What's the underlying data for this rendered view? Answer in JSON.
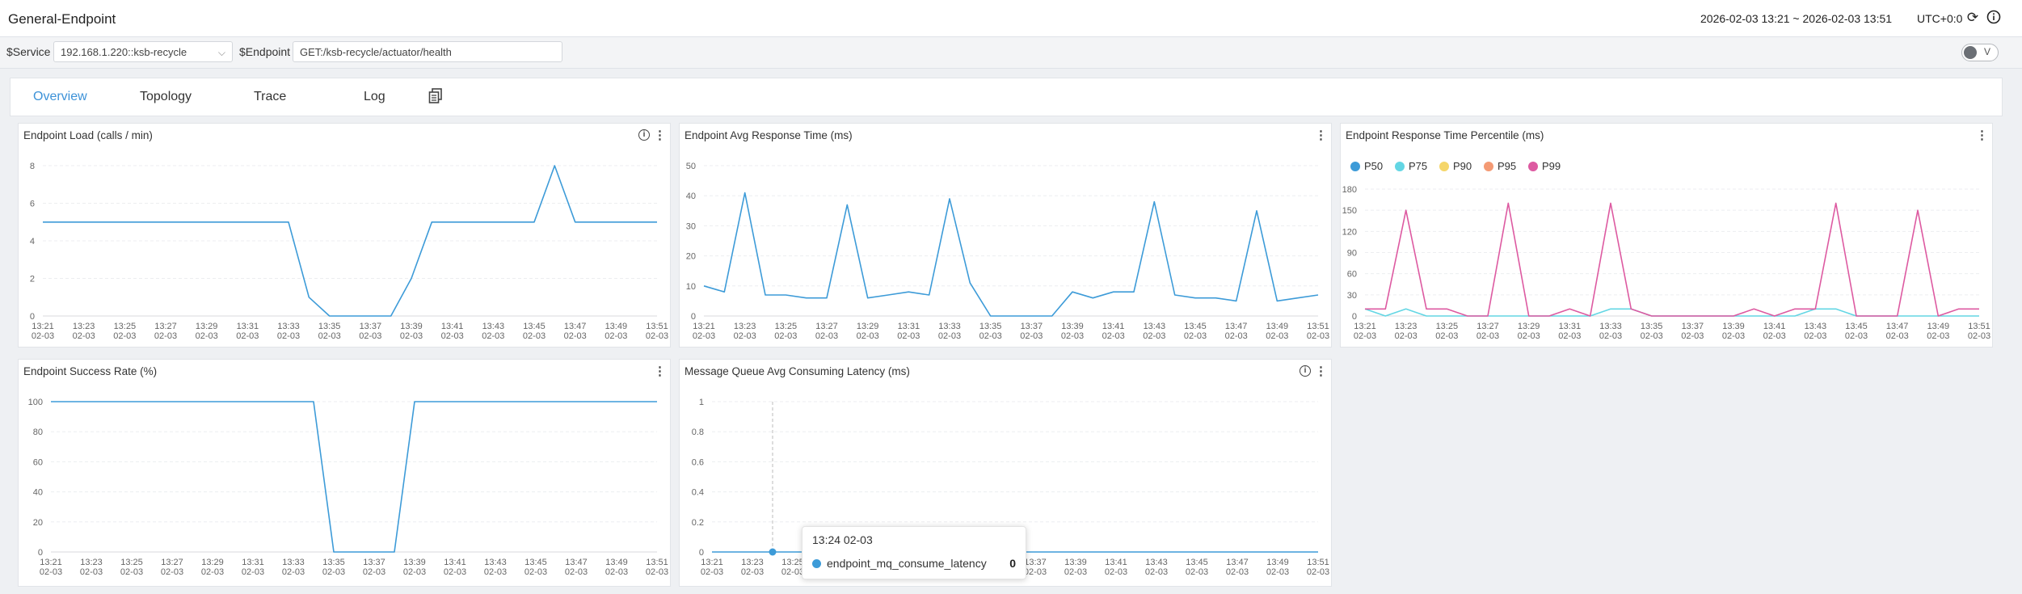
{
  "header": {
    "title": "General-Endpoint",
    "time_range": "2026-02-03 13:21 ~ 2026-02-03 13:51",
    "timezone": "UTC+0:0",
    "icons": [
      "refresh-icon",
      "info-icon"
    ]
  },
  "filters": {
    "service_label": "$Service",
    "service_value": "192.168.1.220::ksb-recycle",
    "endpoint_label": "$Endpoint",
    "endpoint_value": "GET:/ksb-recycle/actuator/health",
    "toggle_label": "V"
  },
  "tabs": [
    {
      "label": "Overview",
      "active": true
    },
    {
      "label": "Topology",
      "active": false
    },
    {
      "label": "Trace",
      "active": false
    },
    {
      "label": "Log",
      "active": false
    }
  ],
  "tooltip": {
    "time": "13:24 02-03",
    "series": "endpoint_mq_consume_latency",
    "value": "0"
  },
  "chart_data": [
    {
      "id": "load",
      "type": "line",
      "title": "Endpoint Load (calls / min)",
      "has_info_icon": true,
      "ylim": [
        0,
        8
      ],
      "yticks": [
        0,
        2,
        4,
        6,
        8
      ],
      "x_time": [
        "13:21",
        "13:22",
        "13:23",
        "13:24",
        "13:25",
        "13:26",
        "13:27",
        "13:28",
        "13:29",
        "13:30",
        "13:31",
        "13:32",
        "13:33",
        "13:34",
        "13:35",
        "13:36",
        "13:37",
        "13:38",
        "13:39",
        "13:40",
        "13:41",
        "13:42",
        "13:43",
        "13:44",
        "13:45",
        "13:46",
        "13:47",
        "13:48",
        "13:49",
        "13:50",
        "13:51"
      ],
      "x_tick_labels": [
        [
          "13:21",
          "02-03"
        ],
        [
          "13:23",
          "02-03"
        ],
        [
          "13:25",
          "02-03"
        ],
        [
          "13:27",
          "02-03"
        ],
        [
          "13:29",
          "02-03"
        ],
        [
          "13:31",
          "02-03"
        ],
        [
          "13:33",
          "02-03"
        ],
        [
          "13:35",
          "02-03"
        ],
        [
          "13:37",
          "02-03"
        ],
        [
          "13:39",
          "02-03"
        ],
        [
          "13:41",
          "02-03"
        ],
        [
          "13:43",
          "02-03"
        ],
        [
          "13:45",
          "02-03"
        ],
        [
          "13:47",
          "02-03"
        ],
        [
          "13:49",
          "02-03"
        ],
        [
          "13:51",
          "02-03"
        ]
      ],
      "series": [
        {
          "color": "#3d9bd8",
          "values": [
            5,
            5,
            5,
            5,
            5,
            5,
            5,
            5,
            5,
            5,
            5,
            5,
            5,
            1,
            0,
            0,
            0,
            0,
            2,
            5,
            5,
            5,
            5,
            5,
            5,
            8,
            5,
            5,
            5,
            5,
            5
          ]
        }
      ]
    },
    {
      "id": "avg-response",
      "type": "line",
      "title": "Endpoint Avg Response Time (ms)",
      "has_info_icon": false,
      "ylim": [
        0,
        50
      ],
      "yticks": [
        0,
        10,
        20,
        30,
        40,
        50
      ],
      "x_tick_labels": [
        [
          "13:21",
          "02-03"
        ],
        [
          "13:23",
          "02-03"
        ],
        [
          "13:25",
          "02-03"
        ],
        [
          "13:27",
          "02-03"
        ],
        [
          "13:29",
          "02-03"
        ],
        [
          "13:31",
          "02-03"
        ],
        [
          "13:33",
          "02-03"
        ],
        [
          "13:35",
          "02-03"
        ],
        [
          "13:37",
          "02-03"
        ],
        [
          "13:39",
          "02-03"
        ],
        [
          "13:41",
          "02-03"
        ],
        [
          "13:43",
          "02-03"
        ],
        [
          "13:45",
          "02-03"
        ],
        [
          "13:47",
          "02-03"
        ],
        [
          "13:49",
          "02-03"
        ],
        [
          "13:51",
          "02-03"
        ]
      ],
      "series": [
        {
          "color": "#3d9bd8",
          "values": [
            10,
            8,
            41,
            7,
            7,
            6,
            6,
            37,
            6,
            7,
            8,
            7,
            39,
            11,
            0,
            0,
            0,
            0,
            8,
            6,
            8,
            8,
            38,
            7,
            6,
            6,
            5,
            35,
            5,
            6,
            7
          ]
        }
      ]
    },
    {
      "id": "percentile",
      "type": "line",
      "title": "Endpoint Response Time Percentile (ms)",
      "has_info_icon": false,
      "ylim": [
        0,
        180
      ],
      "yticks": [
        0,
        30,
        60,
        90,
        120,
        150,
        180
      ],
      "legend": [
        {
          "name": "P50",
          "color": "#3d9bd8"
        },
        {
          "name": "P75",
          "color": "#63d6e4"
        },
        {
          "name": "P90",
          "color": "#f5d66a"
        },
        {
          "name": "P95",
          "color": "#f49a74"
        },
        {
          "name": "P99",
          "color": "#dd5aa1"
        }
      ],
      "x_tick_labels": [
        [
          "13:21",
          "02-03"
        ],
        [
          "13:23",
          "02-03"
        ],
        [
          "13:25",
          "02-03"
        ],
        [
          "13:27",
          "02-03"
        ],
        [
          "13:29",
          "02-03"
        ],
        [
          "13:31",
          "02-03"
        ],
        [
          "13:33",
          "02-03"
        ],
        [
          "13:35",
          "02-03"
        ],
        [
          "13:37",
          "02-03"
        ],
        [
          "13:39",
          "02-03"
        ],
        [
          "13:41",
          "02-03"
        ],
        [
          "13:43",
          "02-03"
        ],
        [
          "13:45",
          "02-03"
        ],
        [
          "13:47",
          "02-03"
        ],
        [
          "13:49",
          "02-03"
        ],
        [
          "13:51",
          "02-03"
        ]
      ],
      "series": [
        {
          "name": "P75",
          "color": "#63d6e4",
          "values": [
            10,
            0,
            10,
            0,
            0,
            0,
            0,
            0,
            0,
            0,
            0,
            0,
            10,
            10,
            0,
            0,
            0,
            0,
            0,
            0,
            0,
            0,
            10,
            10,
            0,
            0,
            0,
            0,
            0,
            0,
            0
          ]
        },
        {
          "name": "P99",
          "color": "#dd5aa1",
          "values": [
            10,
            10,
            150,
            10,
            10,
            0,
            0,
            160,
            0,
            0,
            10,
            0,
            160,
            10,
            0,
            0,
            0,
            0,
            0,
            10,
            0,
            10,
            10,
            160,
            0,
            0,
            0,
            150,
            0,
            10,
            10
          ]
        }
      ]
    },
    {
      "id": "success-rate",
      "type": "line",
      "title": "Endpoint Success Rate (%)",
      "has_info_icon": false,
      "ylim": [
        0,
        100
      ],
      "yticks": [
        0,
        20,
        40,
        60,
        80,
        100
      ],
      "x_tick_labels": [
        [
          "13:21",
          "02-03"
        ],
        [
          "13:23",
          "02-03"
        ],
        [
          "13:25",
          "02-03"
        ],
        [
          "13:27",
          "02-03"
        ],
        [
          "13:29",
          "02-03"
        ],
        [
          "13:31",
          "02-03"
        ],
        [
          "13:33",
          "02-03"
        ],
        [
          "13:35",
          "02-03"
        ],
        [
          "13:37",
          "02-03"
        ],
        [
          "13:39",
          "02-03"
        ],
        [
          "13:41",
          "02-03"
        ],
        [
          "13:43",
          "02-03"
        ],
        [
          "13:45",
          "02-03"
        ],
        [
          "13:47",
          "02-03"
        ],
        [
          "13:49",
          "02-03"
        ],
        [
          "13:51",
          "02-03"
        ]
      ],
      "series": [
        {
          "color": "#3d9bd8",
          "values": [
            100,
            100,
            100,
            100,
            100,
            100,
            100,
            100,
            100,
            100,
            100,
            100,
            100,
            100,
            0,
            0,
            0,
            0,
            100,
            100,
            100,
            100,
            100,
            100,
            100,
            100,
            100,
            100,
            100,
            100,
            100
          ]
        }
      ]
    },
    {
      "id": "mq-latency",
      "type": "line",
      "title": "Message Queue Avg Consuming Latency (ms)",
      "has_info_icon": true,
      "ylim": [
        0,
        1
      ],
      "yticks": [
        0,
        0.2,
        0.4,
        0.6,
        0.8,
        1
      ],
      "x_tick_labels": [
        [
          "13:21",
          "02-03"
        ],
        [
          "13:23",
          "02-03"
        ],
        [
          "13:25",
          "02-03"
        ],
        [
          "13:27",
          "02-03"
        ],
        [
          "13:29",
          "02-03"
        ],
        [
          "13:31",
          "02-03"
        ],
        [
          "13:33",
          "02-03"
        ],
        [
          "13:35",
          "02-03"
        ],
        [
          "13:37",
          "02-03"
        ],
        [
          "13:39",
          "02-03"
        ],
        [
          "13:41",
          "02-03"
        ],
        [
          "13:43",
          "02-03"
        ],
        [
          "13:45",
          "02-03"
        ],
        [
          "13:47",
          "02-03"
        ],
        [
          "13:49",
          "02-03"
        ],
        [
          "13:51",
          "02-03"
        ]
      ],
      "series": [
        {
          "name": "endpoint_mq_consume_latency",
          "color": "#3d9bd8",
          "values": [
            0,
            0,
            0,
            0,
            0,
            0,
            0,
            0,
            0,
            0,
            0,
            0,
            0,
            0,
            0,
            0,
            0,
            0,
            0,
            0,
            0,
            0,
            0,
            0,
            0,
            0,
            0,
            0,
            0,
            0,
            0
          ]
        }
      ],
      "hover_index": 3
    }
  ]
}
